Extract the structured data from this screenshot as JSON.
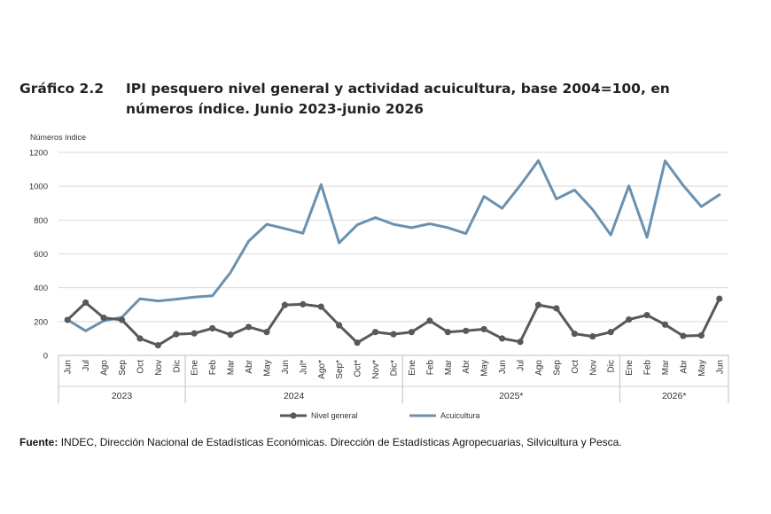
{
  "title": {
    "number": "Gráfico 2.2",
    "text": "IPI pesquero nivel general y actividad acuicultura, base 2004=100, en números índice. Junio 2023-junio 2026"
  },
  "source": {
    "label": "Fuente:",
    "text": "INDEC, Dirección Nacional de Estadísticas Económicas. Dirección de Estadísticas Agropecuarias, Silvicultura y Pesca."
  },
  "chart_data": {
    "type": "line",
    "ylabel": "Números índice",
    "ylim": [
      0,
      1200
    ],
    "yticks": [
      0,
      200,
      400,
      600,
      800,
      1000,
      1200
    ],
    "grid": true,
    "legend_position": "bottom",
    "categories": [
      "Jun",
      "Jul",
      "Ago",
      "Sep",
      "Oct",
      "Nov",
      "Dic",
      "Ene",
      "Feb",
      "Mar",
      "Abr",
      "May",
      "Jun",
      "Jul*",
      "Ago*",
      "Sep*",
      "Oct*",
      "Nov*",
      "Dic*",
      "Ene",
      "Feb",
      "Mar",
      "Abr",
      "May",
      "Jun",
      "Jul",
      "Ago",
      "Sep",
      "Oct",
      "Nov",
      "Dic",
      "Ene",
      "Feb",
      "Mar",
      "Abr",
      "May",
      "Jun"
    ],
    "year_groups": [
      {
        "label": "2023",
        "start": 0,
        "end": 6
      },
      {
        "label": "2024",
        "start": 7,
        "end": 18
      },
      {
        "label": "2025*",
        "start": 19,
        "end": 30
      },
      {
        "label": "2026*",
        "start": 31,
        "end": 36
      }
    ],
    "series": [
      {
        "name": "Nivel general",
        "color": "#595959",
        "marker": "circle",
        "values": [
          210,
          312,
          222,
          210,
          100,
          60,
          125,
          130,
          160,
          122,
          168,
          138,
          298,
          302,
          288,
          178,
          75,
          138,
          125,
          138,
          205,
          138,
          145,
          155,
          100,
          80,
          298,
          278,
          128,
          112,
          138,
          212,
          238,
          182,
          115,
          118,
          335
        ]
      },
      {
        "name": "Acuicultura",
        "color": "#6a91b0",
        "marker": "none",
        "values": [
          210,
          145,
          205,
          225,
          335,
          322,
          332,
          345,
          352,
          490,
          675,
          775,
          750,
          722,
          1010,
          665,
          772,
          815,
          775,
          755,
          778,
          755,
          720,
          940,
          870,
          1005,
          1152,
          925,
          978,
          862,
          712,
          1002,
          698,
          1150,
          1005,
          880,
          950
        ]
      }
    ]
  }
}
